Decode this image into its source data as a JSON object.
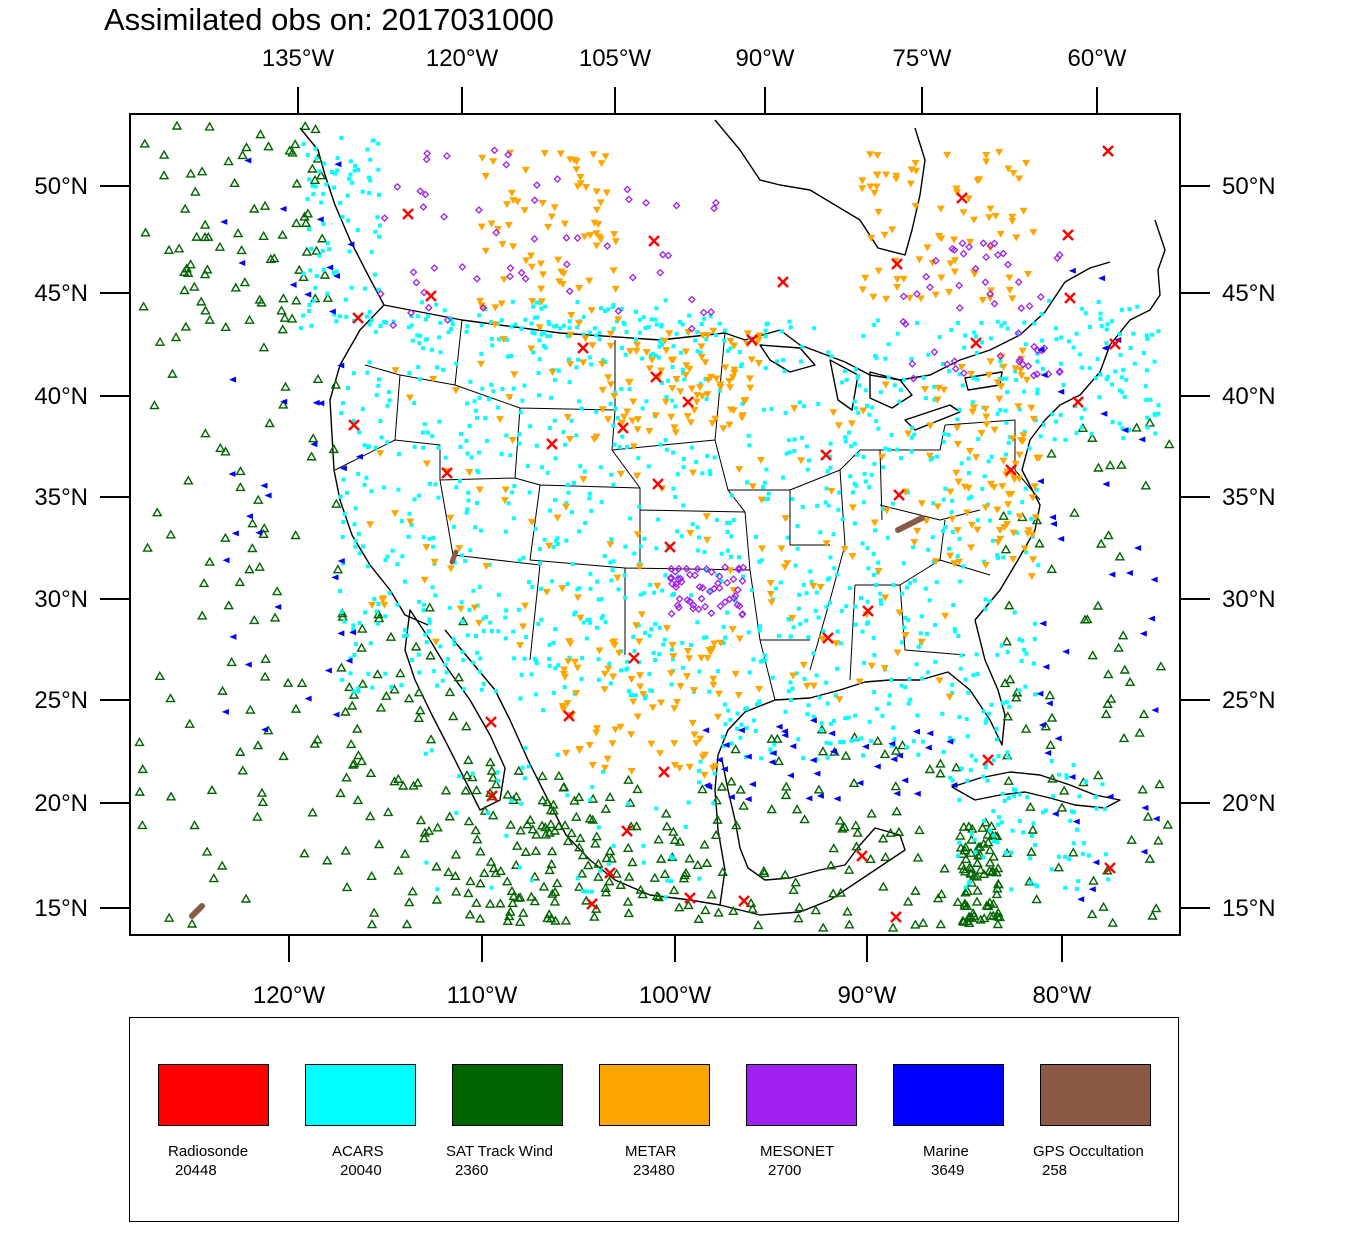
{
  "title": "Assimilated obs on: 2017031000",
  "top_axis_labels": [
    "135°W",
    "120°W",
    "105°W",
    "90°W",
    "75°W",
    "60°W"
  ],
  "bottom_axis_labels": [
    "120°W",
    "110°W",
    "100°W",
    "90°W",
    "80°W"
  ],
  "lat_labels": [
    "50°N",
    "45°N",
    "40°N",
    "35°N",
    "30°N",
    "25°N",
    "20°N",
    "15°N"
  ],
  "legend": [
    {
      "name": "Radiosonde",
      "count": "20448",
      "color": "#ff0000"
    },
    {
      "name": "ACARS",
      "count": "20040",
      "color": "#00ffff"
    },
    {
      "name": "SAT Track Wind",
      "count": "2360",
      "color": "#006400"
    },
    {
      "name": "METAR",
      "count": "23480",
      "color": "#ffa500"
    },
    {
      "name": "MESONET",
      "count": "2700",
      "color": "#a020f0"
    },
    {
      "name": "Marine",
      "count": "3649",
      "color": "#0000ff"
    },
    {
      "name": "GPS Occultation",
      "count": "258",
      "color": "#8b5a45"
    }
  ],
  "observation_colors": {
    "radiosonde": "#ff0000",
    "acars": "#00ffff",
    "sat_track_wind": "#006400",
    "metar": "#ffa500",
    "mesonet": "#a020f0",
    "marine": "#0000ff",
    "gps": "#8b5a45"
  }
}
